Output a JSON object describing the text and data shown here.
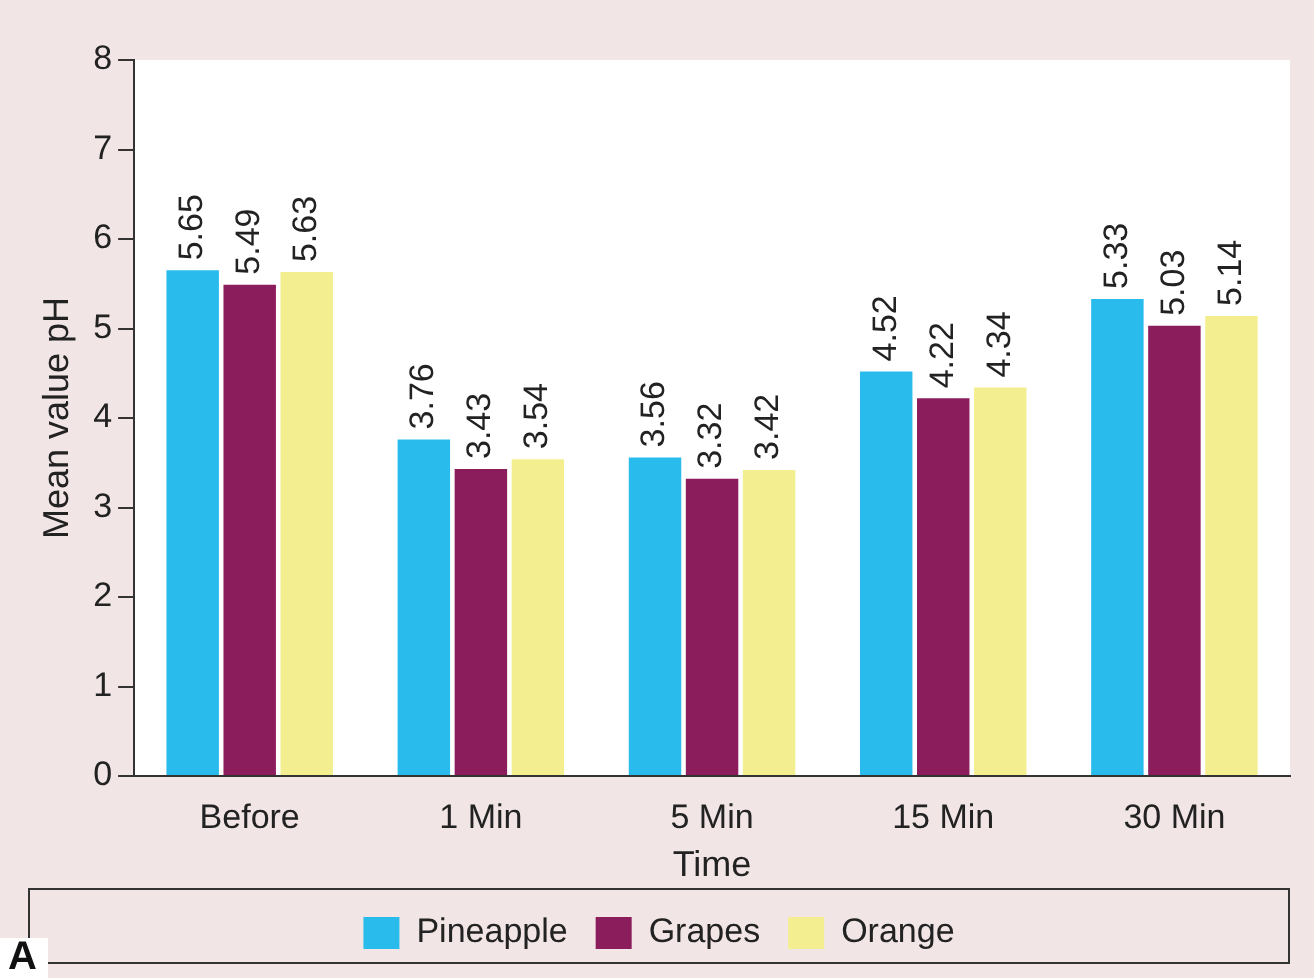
{
  "chart_data": {
    "type": "bar",
    "xlabel": "Time",
    "ylabel": "Mean value pH",
    "categories": [
      "Before",
      "1 Min",
      "5 Min",
      "15 Min",
      "30 Min"
    ],
    "series": [
      {
        "name": "Pineapple",
        "color": "#29bbec",
        "values": [
          5.65,
          3.76,
          3.56,
          4.52,
          5.33
        ]
      },
      {
        "name": "Grapes",
        "color": "#8c1d5c",
        "values": [
          5.49,
          3.43,
          3.32,
          4.22,
          5.03
        ]
      },
      {
        "name": "Orange",
        "color": "#f3ef90",
        "values": [
          5.63,
          3.54,
          3.42,
          4.34,
          5.14
        ]
      }
    ],
    "ylim": [
      0,
      8
    ],
    "yticks": [
      0,
      1,
      2,
      3,
      4,
      5,
      6,
      7,
      8
    ],
    "grid": false,
    "legend": "bottom",
    "data_labels": true,
    "annotations": [
      "A"
    ]
  }
}
